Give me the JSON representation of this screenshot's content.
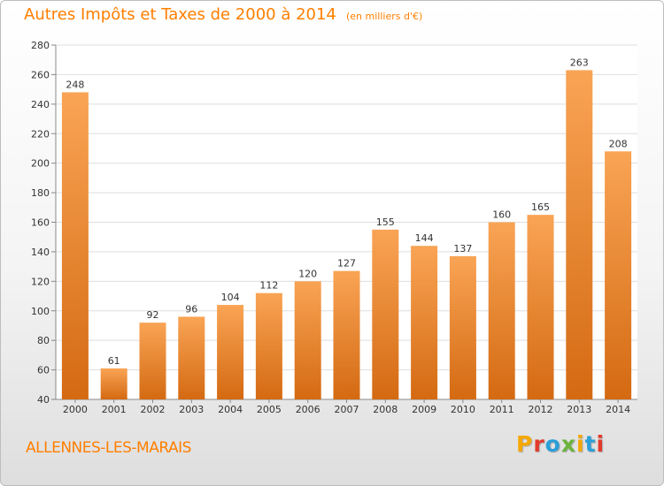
{
  "header": {
    "title": "Autres Impôts et Taxes de 2000 à 2014",
    "unit": "(en milliers d'€)"
  },
  "footer": {
    "commune": "ALLENNES-LES-MARAIS",
    "logo_text": "Proxiti",
    "logo_colors": [
      "#f5a800",
      "#e23b2c",
      "#2a9fd8",
      "#6bb43e",
      "#f5a800",
      "#2a9fd8",
      "#e23b2c"
    ]
  },
  "colors": {
    "accent": "#ff7f00",
    "bar_light": "#f9a455",
    "bar_dark": "#d46a12"
  },
  "chart_data": {
    "type": "bar",
    "categories": [
      "2000",
      "2001",
      "2002",
      "2003",
      "2004",
      "2005",
      "2006",
      "2007",
      "2008",
      "2009",
      "2010",
      "2011",
      "2012",
      "2013",
      "2014"
    ],
    "values": [
      248,
      61,
      92,
      96,
      104,
      112,
      120,
      127,
      155,
      144,
      137,
      160,
      165,
      263,
      208
    ],
    "ylim": [
      40,
      280
    ],
    "yticks": [
      40,
      60,
      80,
      100,
      120,
      140,
      160,
      180,
      200,
      220,
      240,
      260,
      280
    ],
    "grid": true,
    "data_labels": true
  }
}
